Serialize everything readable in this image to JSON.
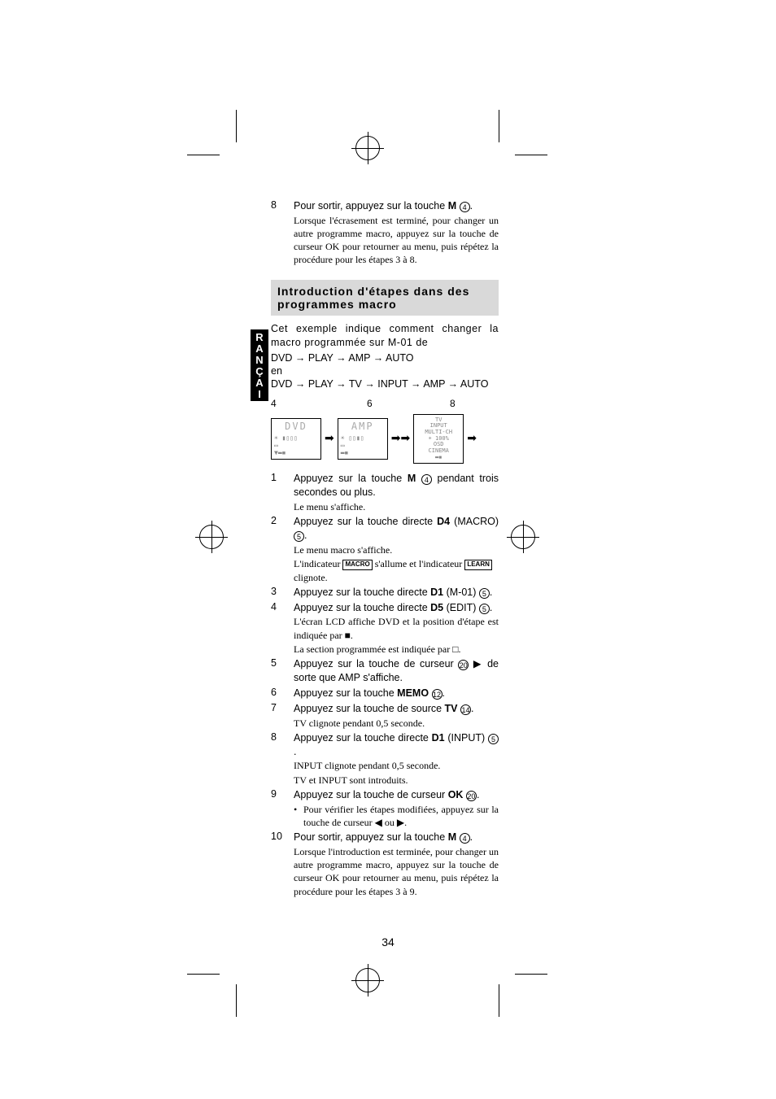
{
  "lang_tab": "FRANÇAIS",
  "page_number": "34",
  "top_step": {
    "num": "8",
    "main_parts": [
      "Pour sortir, appuyez sur la touche ",
      "M",
      " "
    ],
    "circ": "4",
    "main_tail": ".",
    "sub": "Lorsque l'écrasement est terminé, pour changer un autre programme macro, appuyez sur la touche de curseur OK pour retourner au menu, puis répétez la procédure pour les étapes 3 à 8."
  },
  "section_title": "Introduction d'étapes dans des programmes macro",
  "intro1": "Cet exemple indique comment changer la macro programmée sur M-01 de",
  "seq1": "DVD → PLAY → AMP → AUTO",
  "intro2": "en",
  "seq2": "DVD → PLAY → TV → INPUT → AMP → AUTO",
  "lcd_labels": {
    "a": "4",
    "b": "6",
    "c": "8"
  },
  "lcd1": {
    "title": "DVD",
    "lines": [
      "☀ ▮▯▯▯",
      " ",
      "▭",
      " ",
      "  ▼▬◾"
    ]
  },
  "lcd2": {
    "title": "AMP",
    "lines": [
      "☀ ▯▯▮▯",
      " ",
      "▭",
      " ",
      "   ▬◾"
    ]
  },
  "lcd3": {
    "title": "",
    "lines": [
      "TV",
      "INPUT",
      "MULTI-CH",
      "☀  100%",
      "OSD",
      "CINEMA",
      "   ▬◾"
    ]
  },
  "steps": [
    {
      "num": "1",
      "main_pre": "Appuyez sur la touche ",
      "bold": "M",
      "main_mid": " ",
      "circ": "4",
      "main_post": " pendant trois secondes ou plus.",
      "sub": "Le menu s'affiche."
    },
    {
      "num": "2",
      "main_pre": "Appuyez sur la touche directe ",
      "bold": "D4",
      "main_mid": " (MACRO) ",
      "circ": "5",
      "main_post": ".",
      "sub": "Le menu macro s'affiche.",
      "sub2_pre": "L'indicateur ",
      "badge1": "MACRO",
      "sub2_mid": " s'allume et l'indicateur ",
      "badge2": "LEARN",
      "sub2_post": " clignote."
    },
    {
      "num": "3",
      "main_pre": "Appuyez sur la touche directe ",
      "bold": "D1",
      "main_mid": " (M-01) ",
      "circ": "5",
      "main_post": "."
    },
    {
      "num": "4",
      "main_pre": "Appuyez sur la touche directe ",
      "bold": "D5",
      "main_mid": " (EDIT) ",
      "circ": "5",
      "main_post": ".",
      "sub": "L'écran LCD affiche DVD et la position d'étape est indiquée par ■.",
      "sub3": "La section programmée est indiquée par □."
    },
    {
      "num": "5",
      "main_pre": "Appuyez sur la touche de curseur ",
      "circ": "20",
      "main_post": " ▶ de sorte que AMP s'affiche."
    },
    {
      "num": "6",
      "main_pre": "Appuyez sur la touche ",
      "bold": "MEMO",
      "main_mid": " ",
      "circ": "12",
      "main_post": "."
    },
    {
      "num": "7",
      "main_pre": "Appuyez sur la touche de source ",
      "bold": "TV",
      "main_mid": " ",
      "circ": "14",
      "main_post": ".",
      "sub": "TV clignote pendant 0,5 seconde."
    },
    {
      "num": "8",
      "main_pre": "Appuyez sur la touche directe ",
      "bold": "D1",
      "main_mid": " (INPUT) ",
      "circ": "5",
      "main_post": ".",
      "sub": "INPUT clignote pendant 0,5 seconde.",
      "sub3": "TV et INPUT sont introduits."
    },
    {
      "num": "9",
      "main_pre": "Appuyez sur la touche de curseur ",
      "bold": "OK",
      "main_mid": " ",
      "circ": "20",
      "main_post": ".",
      "bullet": "Pour vérifier les étapes modifiées, appuyez sur la touche de curseur ◀ ou ▶."
    },
    {
      "num": "10",
      "main_pre": "Pour sortir, appuyez sur la touche ",
      "bold": "M",
      "main_mid": " ",
      "circ": "4",
      "main_post": ".",
      "sub": "Lorsque l'introduction est terminée, pour changer un autre programme macro, appuyez sur la touche de curseur OK pour retourner au menu, puis répétez la procédure pour les étapes 3 à 9."
    }
  ],
  "colors": {
    "bg": "#ffffff",
    "text": "#000000",
    "section_bg": "#d9d9d9",
    "lcd_faint": "#aaaaaa"
  }
}
